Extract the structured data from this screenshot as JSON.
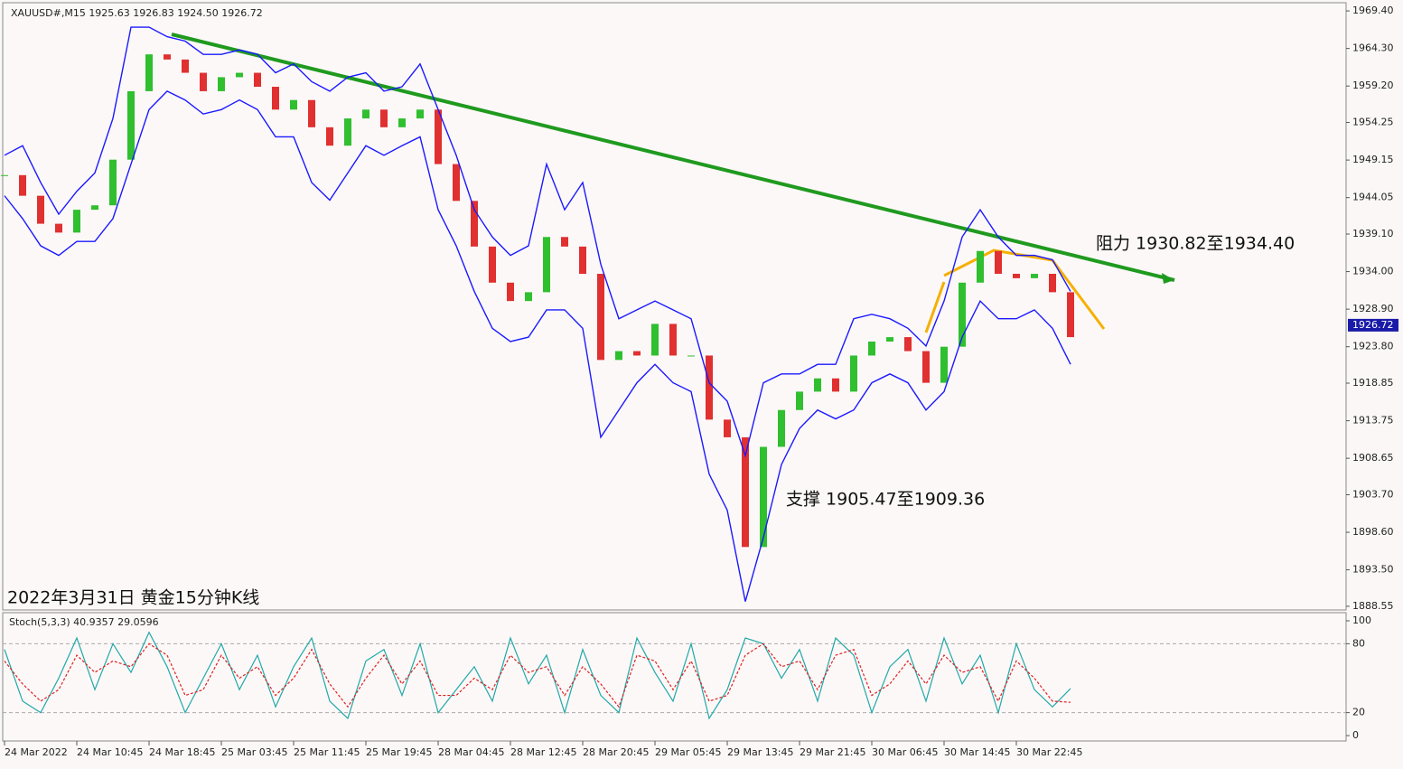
{
  "chart_data": [
    {
      "type": "line",
      "title": "XAUUSD#,M15  1925.63 1926.83 1924.50 1926.72",
      "annotations": [
        "阻力 1930.82至1934.40",
        "支撑 1905.47至1909.36",
        "2022年3月31日 黄金15分钟K线"
      ],
      "current_price": 1926.72,
      "categories": [
        "24 Mar 2022",
        null,
        null,
        null,
        "24 Mar 10:45",
        null,
        null,
        null,
        "24 Mar 18:45",
        null,
        null,
        null,
        "25 Mar 03:45",
        null,
        null,
        null,
        "25 Mar 11:45",
        null,
        null,
        null,
        "25 Mar 19:45",
        null,
        null,
        null,
        "28 Mar 04:45",
        null,
        null,
        null,
        "28 Mar 12:45",
        null,
        null,
        null,
        "28 Mar 20:45",
        null,
        null,
        null,
        "29 Mar 05:45",
        null,
        null,
        null,
        "29 Mar 13:45",
        null,
        null,
        null,
        "29 Mar 21:45",
        null,
        null,
        null,
        "30 Mar 06:45",
        null,
        null,
        null,
        "30 Mar 14:45",
        null,
        null,
        null,
        "30 Mar 22:45",
        null,
        null,
        null
      ],
      "series": [
        {
          "color": "#22aa22",
          "values": [
            1947.1,
            1944.3,
            1940.5,
            1939.3,
            1942.4,
            1943.0,
            1949.2,
            1958.5,
            1963.5,
            1962.8,
            1961.0,
            1958.5,
            1960.4,
            1961.0,
            1959.1,
            1956.0,
            1957.3,
            1953.6,
            1951.1,
            1954.8,
            1956.0,
            1953.6,
            1954.8,
            1956.0,
            1948.6,
            1943.6,
            1937.4,
            1932.5,
            1930.0,
            1931.2,
            1938.7,
            1937.4,
            1933.7,
            1922.0,
            1923.2,
            1922.6,
            1926.9,
            1922.6,
            1922.6,
            1913.9,
            1911.5,
            1896.6,
            1910.2,
            1915.2,
            1917.7,
            1919.5,
            1917.7,
            1922.6,
            1924.5,
            1925.1,
            1923.2,
            1918.9,
            1923.8,
            1932.5,
            1936.8,
            1933.7,
            1933.1,
            1933.7,
            1931.2,
            1925.1
          ]
        },
        {
          "color": "#1a1aff",
          "values": [
            1949.8,
            1951.1,
            1946.1,
            1941.8,
            1944.9,
            1947.4,
            1954.8,
            1967.2,
            1967.2,
            1965.9,
            1965.3,
            1963.5,
            1963.5,
            1964.1,
            1963.5,
            1961.0,
            1962.2,
            1959.8,
            1958.5,
            1960.4,
            1961.0,
            1958.5,
            1959.1,
            1962.2,
            1956.0,
            1949.8,
            1942.4,
            1938.7,
            1936.2,
            1937.5,
            1948.6,
            1942.4,
            1946.1,
            1935.0,
            1927.6,
            1928.8,
            1930.0,
            1928.8,
            1927.6,
            1918.9,
            1916.4,
            1909.0,
            1918.9,
            1920.1,
            1920.1,
            1921.4,
            1921.4,
            1927.6,
            1928.2,
            1927.6,
            1926.3,
            1923.9,
            1930.0,
            1938.7,
            1942.4,
            1938.7,
            1936.2,
            1936.2,
            1935.6,
            1931.3
          ]
        },
        {
          "color": "#1a1aff",
          "values": [
            1944.3,
            1941.2,
            1937.5,
            1936.2,
            1938.1,
            1938.1,
            1941.2,
            1948.6,
            1956.0,
            1958.5,
            1957.3,
            1955.4,
            1956.0,
            1957.3,
            1956.0,
            1952.3,
            1952.3,
            1946.1,
            1943.7,
            1947.4,
            1951.1,
            1949.8,
            1951.1,
            1952.3,
            1942.4,
            1937.5,
            1931.3,
            1926.3,
            1924.5,
            1925.1,
            1928.8,
            1928.8,
            1926.3,
            1911.5,
            1915.2,
            1918.9,
            1921.4,
            1918.9,
            1917.7,
            1906.5,
            1901.6,
            1889.2,
            1897.9,
            1907.8,
            1912.7,
            1915.2,
            1914.0,
            1915.2,
            1918.9,
            1920.1,
            1918.9,
            1915.2,
            1917.7,
            1925.1,
            1930.0,
            1927.6,
            1927.6,
            1928.8,
            1926.3,
            1921.4
          ]
        }
      ],
      "ylim": [
        1888.05,
        1970.27
      ],
      "yticks": [
        {
          "value": 1969.4,
          "label": "1969.40"
        },
        {
          "value": 1964.3,
          "label": "1964.30"
        },
        {
          "value": 1959.2,
          "label": "1959.20"
        },
        1954.25,
        1949.15,
        1944.05,
        {
          "value": 1939.1,
          "label": "1939.10"
        },
        {
          "value": 1934,
          "label": "1934.00"
        },
        {
          "value": 1928.9,
          "label": "1928.90"
        },
        {
          "value": 1923.8,
          "label": "1923.80"
        },
        1918.85,
        1913.75,
        1908.65,
        {
          "value": 1903.7,
          "label": "1903.70"
        },
        {
          "value": 1898.6,
          "label": "1898.60"
        },
        {
          "value": 1893.5,
          "label": "1893.50"
        },
        1888.55
      ]
    },
    {
      "type": "line",
      "title": "Stoch(5,3,3) 40.9357 29.0596",
      "series": [
        {
          "color": "#20a8a8",
          "dashed": false,
          "values": [
            75,
            30,
            20,
            50,
            85,
            40,
            80,
            55,
            90,
            60,
            20,
            50,
            80,
            40,
            70,
            25,
            60,
            85,
            30,
            15,
            65,
            75,
            35,
            80,
            20,
            40,
            60,
            30,
            85,
            45,
            70,
            20,
            75,
            35,
            20,
            85,
            55,
            30,
            80,
            15,
            40,
            85,
            80,
            50,
            75,
            30,
            85,
            70,
            20,
            60,
            75,
            30,
            85,
            45,
            70,
            20,
            80,
            40,
            25,
            41
          ]
        },
        {
          "color": "#dd2222",
          "dashed": true,
          "values": [
            65,
            45,
            30,
            40,
            70,
            55,
            65,
            60,
            80,
            70,
            35,
            40,
            70,
            50,
            60,
            35,
            50,
            75,
            45,
            25,
            50,
            70,
            45,
            65,
            35,
            35,
            50,
            40,
            70,
            55,
            60,
            35,
            60,
            45,
            25,
            70,
            65,
            40,
            65,
            30,
            35,
            70,
            80,
            60,
            65,
            40,
            70,
            75,
            35,
            45,
            65,
            45,
            70,
            55,
            60,
            30,
            65,
            50,
            30,
            29
          ]
        }
      ],
      "ylim": [
        -4.7,
        105.5
      ],
      "yticks": [
        100,
        80,
        20,
        0
      ],
      "grid": [
        80,
        20
      ]
    }
  ]
}
